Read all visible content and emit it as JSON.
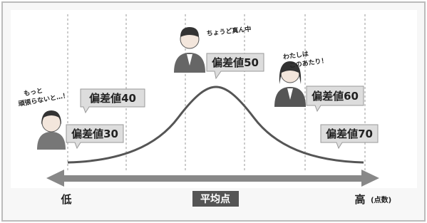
{
  "labels": [
    "偏差値30",
    "偏差値40",
    "偏差値50",
    "偏差値60",
    "偏差値70"
  ],
  "speech": {
    "left": [
      "もっと",
      "頑張らないと…！"
    ],
    "center": [
      "ちょうど真ん中"
    ],
    "right": [
      "わたしは",
      "このあたり！"
    ]
  },
  "axis": {
    "low": "低",
    "high": "高",
    "unit": "(点数)",
    "center": "平均点"
  }
}
